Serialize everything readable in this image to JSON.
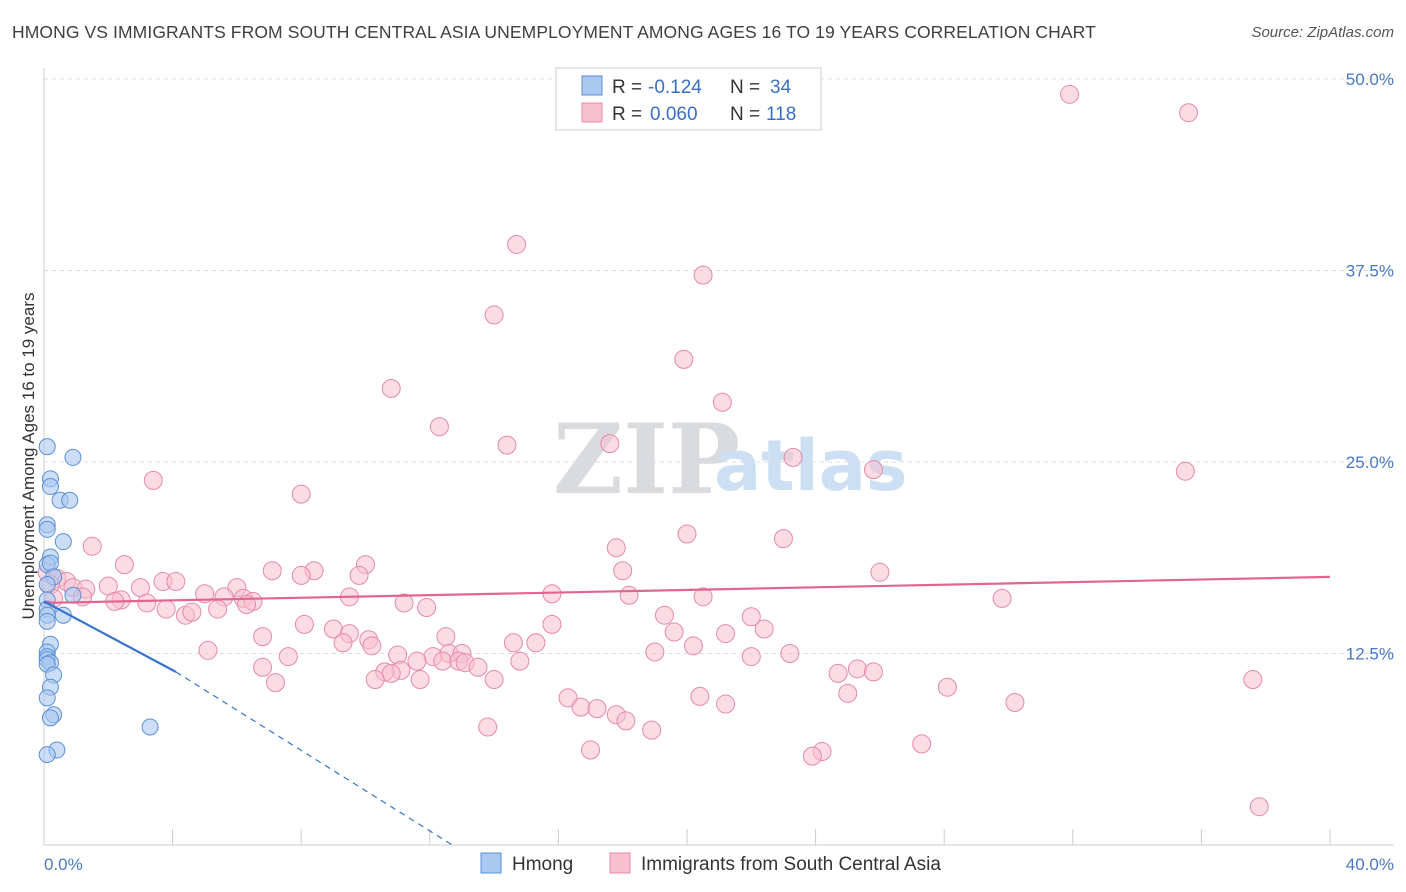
{
  "title": "HMONG VS IMMIGRANTS FROM SOUTH CENTRAL ASIA UNEMPLOYMENT AMONG AGES 16 TO 19 YEARS CORRELATION CHART",
  "source": "Source: ZipAtlas.com",
  "watermark": {
    "zip": "ZIP",
    "atlas": "atlas"
  },
  "legend": {
    "r_label": "R =",
    "n_label": "N =",
    "rows": [
      {
        "r": "-0.124",
        "n": "34"
      },
      {
        "r": "0.060",
        "n": "118"
      }
    ]
  },
  "colors": {
    "hmong_fill": "#aac8f0",
    "hmong_stroke": "#5b8fd6",
    "hmong_line": "#3573cf",
    "imm_fill": "#f7bfd0",
    "imm_stroke": "#e58aa8",
    "imm_line": "#e0668f",
    "axis_label": "#4a78c2",
    "grid": "#dddddd"
  },
  "chart_data": {
    "type": "scatter",
    "title": "HMONG VS IMMIGRANTS FROM SOUTH CENTRAL ASIA UNEMPLOYMENT AMONG AGES 16 TO 19 YEARS CORRELATION CHART",
    "xlabel": "",
    "ylabel": "Unemployment Among Ages 16 to 19 years",
    "xlim": [
      0,
      40
    ],
    "ylim": [
      0,
      50
    ],
    "x_tick_labels": [
      "0.0%",
      "40.0%"
    ],
    "y_ticks": [
      12.5,
      25.0,
      37.5,
      50.0
    ],
    "y_tick_labels": [
      "12.5%",
      "25.0%",
      "37.5%",
      "50.0%"
    ],
    "grid": "horizontal dashed",
    "legend_position": "top-center",
    "series": [
      {
        "name": "Hmong",
        "r": -0.124,
        "n": 34,
        "trend": {
          "x0": 0,
          "y0": 15.9,
          "x1": 4.1,
          "y1": 11.3,
          "dashed_to_x": 12.7,
          "dashed_to_y": 0
        },
        "points": [
          [
            0.1,
            26.0
          ],
          [
            0.2,
            23.9
          ],
          [
            0.2,
            23.4
          ],
          [
            0.9,
            25.3
          ],
          [
            0.5,
            22.5
          ],
          [
            0.8,
            22.5
          ],
          [
            0.1,
            20.9
          ],
          [
            0.1,
            20.6
          ],
          [
            0.6,
            19.8
          ],
          [
            0.2,
            18.8
          ],
          [
            0.1,
            18.3
          ],
          [
            0.2,
            18.4
          ],
          [
            0.3,
            17.5
          ],
          [
            0.1,
            17.0
          ],
          [
            0.9,
            16.3
          ],
          [
            0.1,
            16.0
          ],
          [
            0.1,
            15.4
          ],
          [
            0.1,
            15.0
          ],
          [
            0.6,
            15.0
          ],
          [
            0.1,
            14.6
          ],
          [
            0.2,
            13.1
          ],
          [
            0.1,
            12.6
          ],
          [
            0.1,
            12.3
          ],
          [
            0.1,
            12.1
          ],
          [
            0.2,
            11.9
          ],
          [
            0.1,
            11.8
          ],
          [
            0.3,
            11.1
          ],
          [
            0.2,
            10.3
          ],
          [
            0.1,
            9.6
          ],
          [
            0.3,
            8.5
          ],
          [
            0.2,
            8.3
          ],
          [
            3.3,
            7.7
          ],
          [
            0.4,
            6.2
          ],
          [
            0.1,
            5.9
          ]
        ]
      },
      {
        "name": "Immigrants from South Central Asia",
        "r": 0.06,
        "n": 118,
        "trend": {
          "x0": 0,
          "y0": 15.8,
          "x1": 40,
          "y1": 17.5
        },
        "points": [
          [
            31.9,
            49.0
          ],
          [
            35.6,
            47.8
          ],
          [
            14.7,
            39.2
          ],
          [
            20.5,
            37.2
          ],
          [
            14.0,
            34.6
          ],
          [
            19.9,
            31.7
          ],
          [
            10.8,
            29.8
          ],
          [
            21.1,
            28.9
          ],
          [
            12.3,
            27.3
          ],
          [
            17.6,
            26.2
          ],
          [
            14.4,
            26.1
          ],
          [
            23.3,
            25.3
          ],
          [
            25.8,
            24.5
          ],
          [
            35.5,
            24.4
          ],
          [
            3.4,
            23.8
          ],
          [
            8.0,
            22.9
          ],
          [
            20.0,
            20.3
          ],
          [
            23.0,
            20.0
          ],
          [
            1.5,
            19.5
          ],
          [
            17.8,
            19.4
          ],
          [
            2.5,
            18.3
          ],
          [
            10.0,
            18.3
          ],
          [
            7.1,
            17.9
          ],
          [
            8.4,
            17.9
          ],
          [
            18.0,
            17.9
          ],
          [
            26.0,
            17.8
          ],
          [
            8.0,
            17.6
          ],
          [
            9.8,
            17.6
          ],
          [
            0.1,
            17.8
          ],
          [
            0.4,
            17.4
          ],
          [
            0.7,
            17.2
          ],
          [
            0.2,
            17.0
          ],
          [
            0.9,
            16.8
          ],
          [
            1.3,
            16.7
          ],
          [
            2.0,
            16.9
          ],
          [
            3.7,
            17.2
          ],
          [
            4.1,
            17.2
          ],
          [
            3.0,
            16.8
          ],
          [
            5.0,
            16.4
          ],
          [
            6.0,
            16.8
          ],
          [
            15.8,
            16.4
          ],
          [
            18.2,
            16.3
          ],
          [
            20.5,
            16.2
          ],
          [
            29.8,
            16.1
          ],
          [
            9.5,
            16.2
          ],
          [
            0.3,
            16.1
          ],
          [
            1.2,
            16.2
          ],
          [
            2.4,
            16.0
          ],
          [
            5.6,
            16.2
          ],
          [
            6.2,
            16.1
          ],
          [
            6.5,
            15.9
          ],
          [
            2.2,
            15.9
          ],
          [
            3.2,
            15.8
          ],
          [
            3.8,
            15.4
          ],
          [
            4.4,
            15.0
          ],
          [
            4.6,
            15.2
          ],
          [
            5.4,
            15.4
          ],
          [
            6.3,
            15.7
          ],
          [
            11.2,
            15.8
          ],
          [
            11.9,
            15.5
          ],
          [
            19.3,
            15.0
          ],
          [
            22.0,
            14.9
          ],
          [
            8.1,
            14.4
          ],
          [
            9.0,
            14.1
          ],
          [
            9.5,
            13.8
          ],
          [
            15.8,
            14.4
          ],
          [
            19.6,
            13.9
          ],
          [
            21.2,
            13.8
          ],
          [
            22.4,
            14.1
          ],
          [
            6.8,
            13.6
          ],
          [
            12.5,
            13.6
          ],
          [
            10.1,
            13.4
          ],
          [
            9.3,
            13.2
          ],
          [
            10.2,
            13.0
          ],
          [
            14.6,
            13.2
          ],
          [
            15.3,
            13.2
          ],
          [
            20.2,
            13.0
          ],
          [
            5.1,
            12.7
          ],
          [
            19.0,
            12.6
          ],
          [
            23.2,
            12.5
          ],
          [
            22.0,
            12.3
          ],
          [
            7.6,
            12.3
          ],
          [
            11.0,
            12.4
          ],
          [
            12.1,
            12.3
          ],
          [
            12.6,
            12.5
          ],
          [
            13.0,
            12.5
          ],
          [
            11.6,
            12.0
          ],
          [
            12.4,
            12.0
          ],
          [
            12.9,
            12.0
          ],
          [
            13.1,
            11.9
          ],
          [
            14.8,
            12.0
          ],
          [
            13.5,
            11.6
          ],
          [
            6.8,
            11.6
          ],
          [
            11.1,
            11.4
          ],
          [
            10.6,
            11.3
          ],
          [
            10.8,
            11.2
          ],
          [
            25.3,
            11.5
          ],
          [
            24.7,
            11.2
          ],
          [
            25.8,
            11.3
          ],
          [
            10.3,
            10.8
          ],
          [
            11.7,
            10.8
          ],
          [
            14.0,
            10.8
          ],
          [
            7.2,
            10.6
          ],
          [
            37.6,
            10.8
          ],
          [
            28.1,
            10.3
          ],
          [
            16.3,
            9.6
          ],
          [
            25.0,
            9.9
          ],
          [
            20.4,
            9.7
          ],
          [
            30.2,
            9.3
          ],
          [
            16.7,
            9.0
          ],
          [
            17.2,
            8.9
          ],
          [
            21.2,
            9.2
          ],
          [
            17.8,
            8.5
          ],
          [
            18.1,
            8.1
          ],
          [
            13.8,
            7.7
          ],
          [
            18.9,
            7.5
          ],
          [
            27.3,
            6.6
          ],
          [
            17.0,
            6.2
          ],
          [
            24.2,
            6.1
          ],
          [
            23.9,
            5.8
          ],
          [
            37.8,
            2.5
          ]
        ]
      }
    ]
  }
}
